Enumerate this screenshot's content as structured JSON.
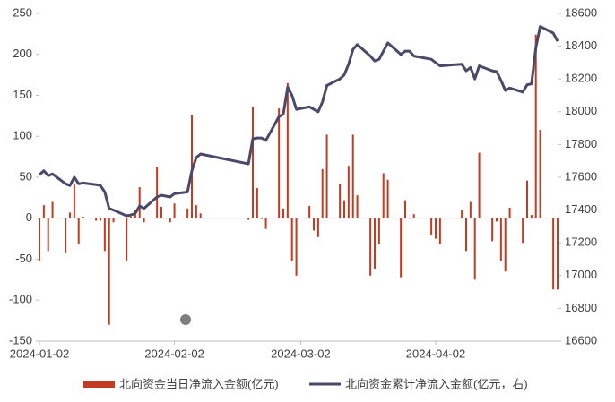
{
  "chart_data": {
    "type": "bar",
    "x": [
      "2024-01-02",
      "2024-01-03",
      "2024-01-04",
      "2024-01-05",
      "2024-01-08",
      "2024-01-09",
      "2024-01-10",
      "2024-01-11",
      "2024-01-12",
      "2024-01-15",
      "2024-01-16",
      "2024-01-17",
      "2024-01-18",
      "2024-01-19",
      "2024-01-22",
      "2024-01-23",
      "2024-01-24",
      "2024-01-25",
      "2024-01-26",
      "2024-01-29",
      "2024-01-30",
      "2024-01-31",
      "2024-02-01",
      "2024-02-02",
      "2024-02-05",
      "2024-02-06",
      "2024-02-07",
      "2024-02-08",
      "2024-02-19",
      "2024-02-20",
      "2024-02-21",
      "2024-02-22",
      "2024-02-23",
      "2024-02-26",
      "2024-02-27",
      "2024-02-28",
      "2024-02-29",
      "2024-03-01",
      "2024-03-04",
      "2024-03-05",
      "2024-03-06",
      "2024-03-07",
      "2024-03-08",
      "2024-03-11",
      "2024-03-12",
      "2024-03-13",
      "2024-03-14",
      "2024-03-15",
      "2024-03-18",
      "2024-03-19",
      "2024-03-20",
      "2024-03-21",
      "2024-03-22",
      "2024-03-25",
      "2024-03-26",
      "2024-03-27",
      "2024-03-28",
      "2024-04-01",
      "2024-04-02",
      "2024-04-03",
      "2024-04-08",
      "2024-04-09",
      "2024-04-10",
      "2024-04-11",
      "2024-04-12",
      "2024-04-15",
      "2024-04-16",
      "2024-04-17",
      "2024-04-18",
      "2024-04-19",
      "2024-04-22",
      "2024-04-23",
      "2024-04-24",
      "2024-04-25",
      "2024-04-26",
      "2024-04-29",
      "2024-04-30"
    ],
    "series": [
      {
        "name": "北向资金当日净流入金额(亿元)",
        "type": "bar",
        "color": "#c23b22",
        "values": [
          -52,
          16,
          -40,
          20,
          -43,
          7,
          42,
          -32,
          2,
          -3,
          -3,
          -40,
          -130,
          -5,
          -52,
          2,
          10,
          38,
          -5,
          63,
          14,
          0,
          -5,
          18,
          12,
          126,
          16,
          6,
          -2,
          136,
          37,
          -1,
          -13,
          134,
          12,
          165,
          -52,
          -70,
          15,
          -15,
          -23,
          60,
          102,
          42,
          22,
          64,
          102,
          28,
          -70,
          -62,
          -32,
          55,
          47,
          -72,
          22,
          0,
          5,
          -20,
          -25,
          -32,
          10,
          -40,
          20,
          -75,
          80,
          -28,
          -4,
          -52,
          -65,
          13,
          -30,
          46,
          4,
          224,
          108,
          -87,
          -87
        ]
      },
      {
        "name": "北向资金累计净流入金额(亿元，右)",
        "type": "line",
        "axis": "y2",
        "color": "#4a4a68",
        "values": [
          17616,
          17640,
          17610,
          17620,
          17560,
          17550,
          17600,
          17560,
          17565,
          17555,
          17550,
          17510,
          17410,
          17400,
          17365,
          17370,
          17380,
          17425,
          17410,
          17480,
          17490,
          17485,
          17480,
          17500,
          17510,
          17640,
          17720,
          17742,
          17682,
          17835,
          17840,
          17840,
          17825,
          17970,
          17985,
          18150,
          18100,
          18015,
          18030,
          18015,
          18000,
          18060,
          18160,
          18200,
          18225,
          18290,
          18380,
          18410,
          18340,
          18310,
          18320,
          18370,
          18420,
          18350,
          18370,
          18370,
          18340,
          18320,
          18300,
          18280,
          18290,
          18250,
          18270,
          18200,
          18280,
          18250,
          18245,
          18190,
          18130,
          18145,
          18120,
          18165,
          18170,
          18390,
          18520,
          18480,
          18430
        ]
      }
    ],
    "xlim": [
      "2024-01-02",
      "2024-04-30"
    ],
    "xticks": [
      "2024-01-02",
      "2024-02-02",
      "2024-03-02",
      "2024-04-02"
    ],
    "ylim": [
      -150,
      250
    ],
    "yticks": [
      -150,
      -100,
      -50,
      0,
      50,
      100,
      150,
      200,
      250
    ],
    "y2lim": [
      16600,
      18600
    ],
    "y2ticks": [
      16600,
      16800,
      17000,
      17200,
      17400,
      17600,
      17800,
      18000,
      18200,
      18400,
      18600
    ]
  }
}
